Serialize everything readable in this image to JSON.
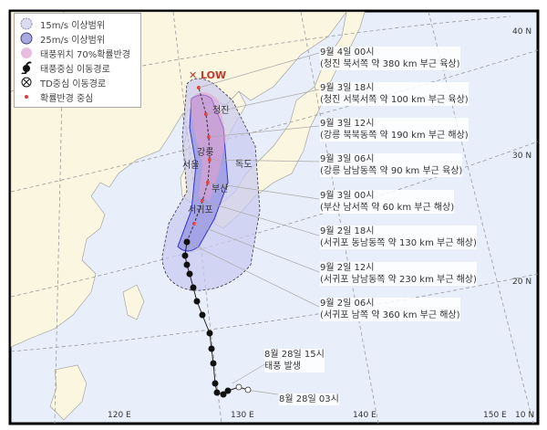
{
  "legend": [
    {
      "label": "15m/s 이상범위",
      "icon": "light-circle-icon",
      "color": "#dcdcf0"
    },
    {
      "label": "25m/s 이상범위",
      "icon": "dark-circle-icon",
      "color": "#a9a9e0"
    },
    {
      "label": "태풍위치 70%확률반경",
      "icon": "pink-circle-icon",
      "color": "#e8bde0"
    },
    {
      "label": "태풍중심 이동경로",
      "icon": "typhoon-icon"
    },
    {
      "label": "TD중심 이동경로",
      "icon": "td-icon"
    },
    {
      "label": "확률반경 중심",
      "icon": "red-dot-icon",
      "color": "#e53935"
    }
  ],
  "low_label": "✕ LOW",
  "places": {
    "cheongjin": "청진",
    "gangneung": "강릉",
    "seoul": "서울",
    "dokdo": "독도",
    "busan": "부산",
    "seogwipo": "서귀포"
  },
  "forecasts": [
    {
      "time": "9월 4일 00시",
      "desc": "(청진 북서쪽 약 380 km 부근 육상)"
    },
    {
      "time": "9월 3일 18시",
      "desc": "(청진 서북서쪽 약 100 km 부근 육상)"
    },
    {
      "time": "9월 3일 12시",
      "desc": "(강릉 북북동쪽 약 190 km 부근 해상)"
    },
    {
      "time": "9월 3일 06시",
      "desc": "(강릉 남남동쪽 약 90 km 부근 육상)"
    },
    {
      "time": "9월 3일 00시",
      "desc": "(부산 남서쪽 약 60 km 부근 해상)"
    },
    {
      "time": "9월 2일 18시",
      "desc": "(서귀포 동남동쪽 약 130 km 부근 해상)"
    },
    {
      "time": "9월 2일 12시",
      "desc": "(서귀포 남남동쪽 약 230 km 부근 해상)"
    },
    {
      "time": "9월 2일 06시",
      "desc": "(서귀포 남쪽 약 360 km 부근 해상)"
    }
  ],
  "genesis": {
    "time": "8월 28일 15시",
    "desc": "태풍 발생"
  },
  "start": {
    "time": "8월 28일 03시"
  },
  "grid_labels": {
    "lat40": "40 N",
    "lat30": "30 N",
    "lat20": "20 N",
    "lat10": "10 N",
    "lon120": "120 E",
    "lon130": "130 E",
    "lon140": "140 E",
    "lon150": "150 E"
  },
  "colors": {
    "land": "#fbf6df",
    "sea": "#e8effa",
    "track": "#222222",
    "forecast": "#e53935"
  }
}
